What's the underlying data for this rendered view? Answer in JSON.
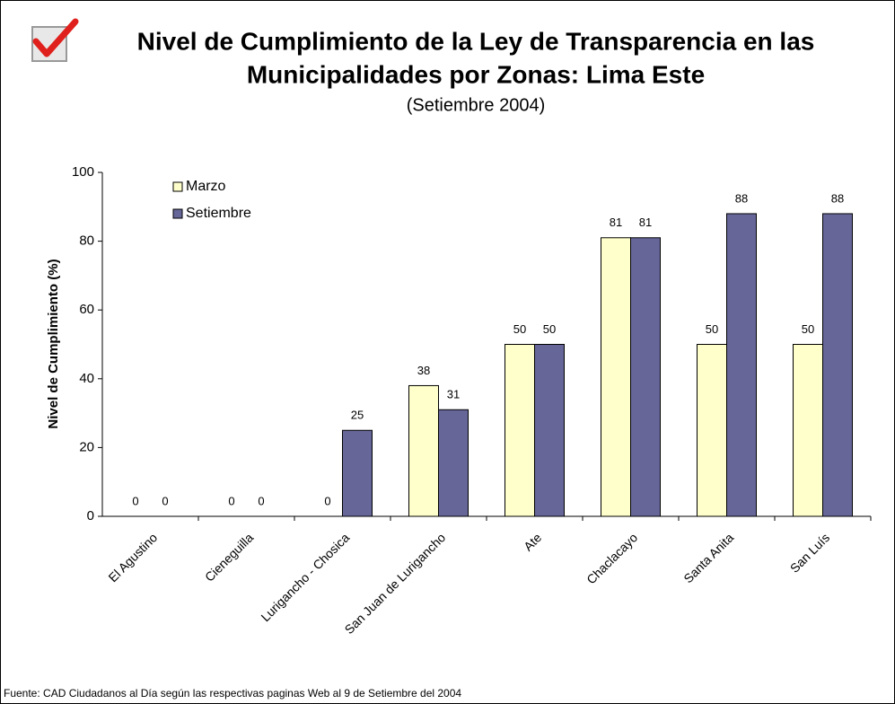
{
  "chart_data": {
    "type": "bar",
    "title": [
      "Nivel de Cumplimiento de la Ley de Transparencia en las",
      "Municipalidades por Zonas: Lima Este"
    ],
    "subtitle": "(Setiembre 2004)",
    "y_label": "Nivel de Cumplimiento (%)",
    "source": "Fuente: CAD Ciudadanos al Día según las respectivas paginas Web al 9 de Setiembre del 2004",
    "categories": [
      "El Agustino",
      "Cieneguilla",
      "Lurigancho - Chosica",
      "San Juan de Lurigancho",
      "Ate",
      "Chaclacayo",
      "Santa Anita",
      "San Luís"
    ],
    "series": [
      {
        "name": "Marzo",
        "color": "#ffffcc",
        "values": [
          0,
          0,
          0,
          38,
          50,
          81,
          50,
          50
        ]
      },
      {
        "name": "Setiembre",
        "color": "#666699",
        "values": [
          0,
          0,
          25,
          31,
          50,
          81,
          88,
          88
        ]
      }
    ],
    "ylim": [
      0,
      100
    ],
    "yticks": [
      0,
      20,
      40,
      60,
      80,
      100
    ],
    "legend": "upper left"
  }
}
